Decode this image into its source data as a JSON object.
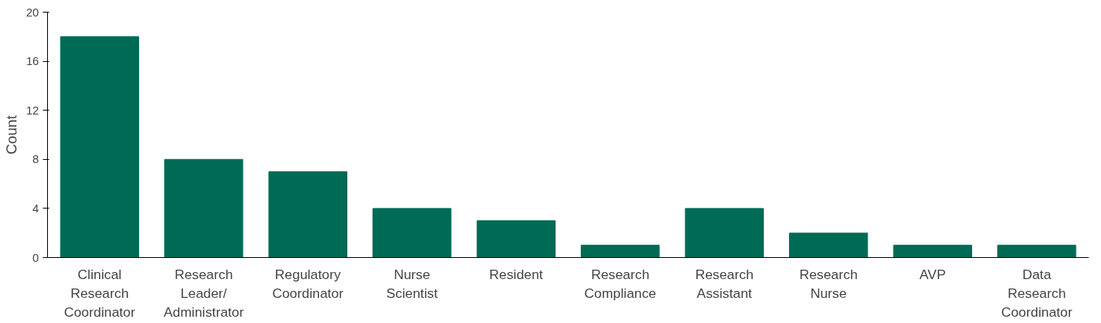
{
  "chart_data": {
    "type": "bar",
    "ylabel": "Count",
    "categories": [
      "Clinical Research Coordinator",
      "Research Leader/Administrator",
      "Regulatory Coordinator",
      "Nurse Scientist",
      "Resident",
      "Research Compliance",
      "Research Assistant",
      "Research Nurse",
      "AVP",
      "Data Research Coordinator"
    ],
    "values": [
      18,
      8,
      7,
      4,
      3,
      1,
      4,
      2,
      1,
      1
    ],
    "color": "#006b54",
    "ylim": [
      0,
      20
    ],
    "yticks": [
      0,
      4,
      8,
      12,
      16,
      20
    ],
    "grid": false
  }
}
